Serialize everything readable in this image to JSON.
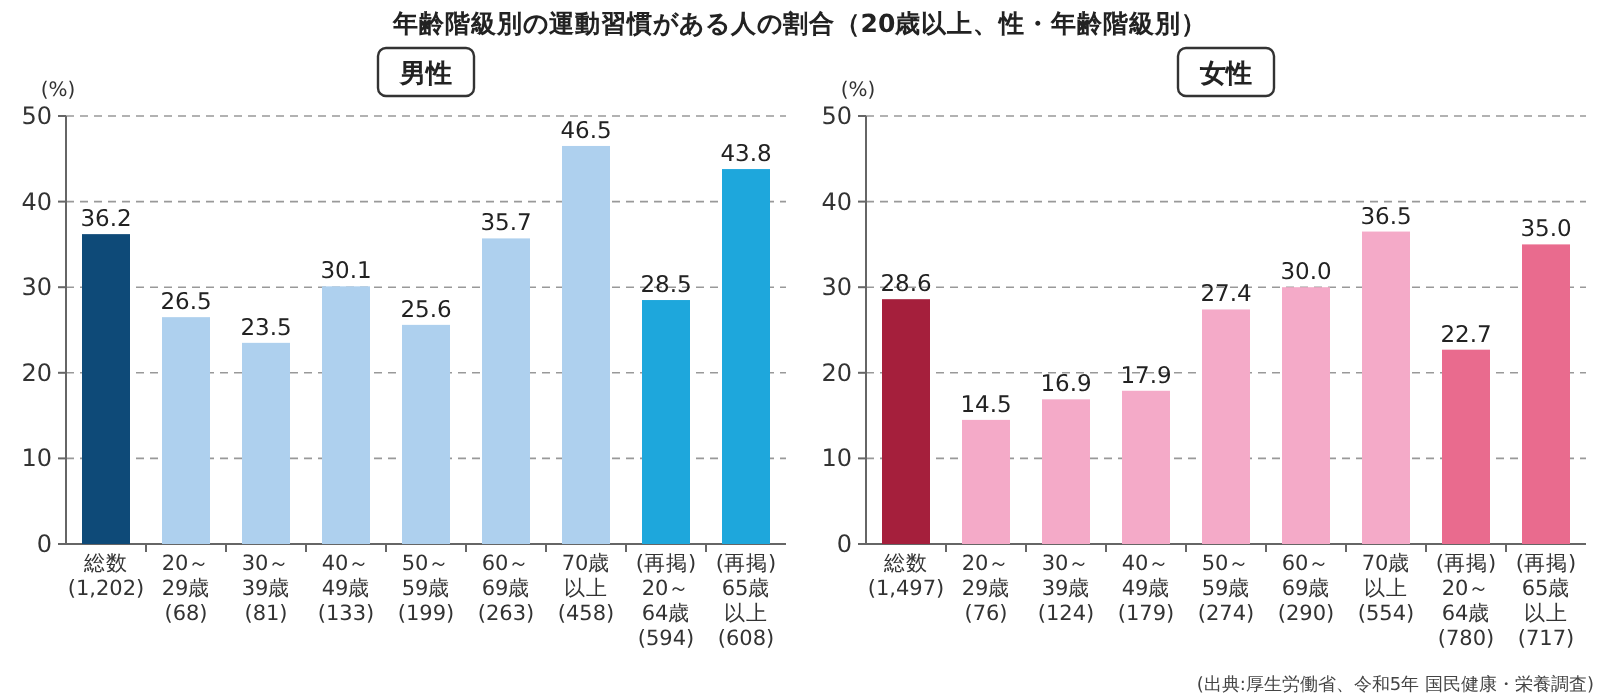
{
  "chart_data": [
    {
      "type": "bar",
      "title": "年齢階級別の運動習慣がある人の割合（20歳以上、性・年齢階級別）",
      "subtitle": "男性",
      "ylabel": "(%)",
      "categories": [
        "総数\n(1,202)",
        "20～\n29歳\n(68)",
        "30～\n39歳\n(81)",
        "40～\n49歳\n(133)",
        "50～\n59歳\n(199)",
        "60～\n69歳\n(263)",
        "70歳以上\n(458)",
        "(再掲)\n20～\n64歳\n(594)",
        "(再掲)\n65歳以上\n(608)"
      ],
      "values": [
        36.2,
        26.5,
        23.5,
        30.1,
        25.6,
        35.7,
        46.5,
        28.5,
        43.8
      ],
      "colors": [
        "#0e4a78",
        "#aed0ee",
        "#aed0ee",
        "#aed0ee",
        "#aed0ee",
        "#aed0ee",
        "#aed0ee",
        "#1ea7dc",
        "#1ea7dc"
      ],
      "ylim": [
        0,
        50
      ],
      "yticks": [
        0,
        10,
        20,
        30,
        40,
        50
      ],
      "grid": "y",
      "data_labels": true
    },
    {
      "type": "bar",
      "subtitle": "女性",
      "ylabel": "(%)",
      "categories": [
        "総数\n(1,497)",
        "20～\n29歳\n(76)",
        "30～\n39歳\n(124)",
        "40～\n49歳\n(179)",
        "50～\n59歳\n(274)",
        "60～\n69歳\n(290)",
        "70歳以上\n(554)",
        "(再掲)\n20～\n64歳\n(780)",
        "(再掲)\n65歳以上\n(717)"
      ],
      "values": [
        28.6,
        14.5,
        16.9,
        17.9,
        27.4,
        30.0,
        36.5,
        22.7,
        35.0
      ],
      "value_labels": [
        "28.6",
        "14.5",
        "16.9",
        "17.9",
        "27.4",
        "30.0",
        "36.5",
        "22.7",
        "35.0"
      ],
      "colors": [
        "#a51f3c",
        "#f4aac8",
        "#f4aac8",
        "#f4aac8",
        "#f4aac8",
        "#f4aac8",
        "#f4aac8",
        "#e96b8e",
        "#e96b8e"
      ],
      "ylim": [
        0,
        50
      ],
      "yticks": [
        0,
        10,
        20,
        30,
        40,
        50
      ],
      "grid": "y",
      "annotations": [
        "(出典:厚生労働省、令和5年 国民健康・栄養調査)"
      ]
    }
  ]
}
